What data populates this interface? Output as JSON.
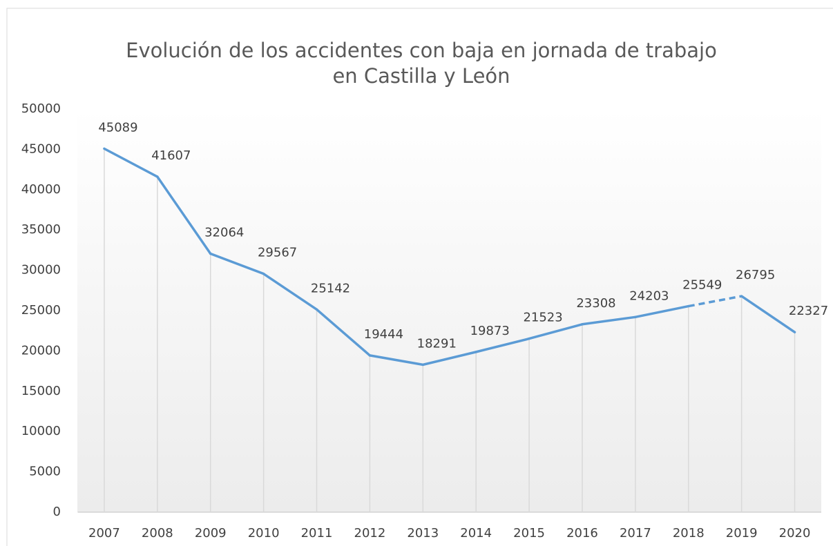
{
  "chart_data": {
    "type": "line",
    "title": [
      "Evolución de los accidentes con baja en jornada de trabajo",
      "en Castilla y León"
    ],
    "categories": [
      "2007",
      "2008",
      "2009",
      "2010",
      "2011",
      "2012",
      "2013",
      "2014",
      "2015",
      "2016",
      "2017",
      "2018",
      "2019",
      "2020"
    ],
    "values": [
      45089,
      41607,
      32064,
      29567,
      25142,
      19444,
      18291,
      19873,
      21523,
      23308,
      24203,
      25549,
      26795,
      22327
    ],
    "color": "#5b9bd5",
    "dashed_segments": [
      11
    ],
    "drop_lines": true,
    "ylim": [
      0,
      50000
    ],
    "yticks": [
      0,
      5000,
      10000,
      15000,
      20000,
      25000,
      30000,
      35000,
      40000,
      45000,
      50000
    ],
    "grid": false
  }
}
